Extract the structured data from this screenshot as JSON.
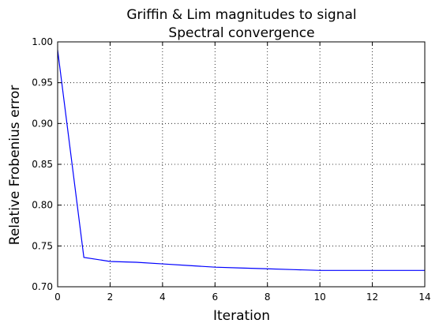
{
  "chart_data": {
    "type": "line",
    "title_line1": "Griffin & Lim magnitudes to signal",
    "title_line2": "Spectral convergence",
    "xlabel": "Iteration",
    "ylabel": "Relative Frobenius error",
    "xlim": [
      0,
      14
    ],
    "ylim": [
      0.7,
      1.0
    ],
    "xticks": [
      0,
      2,
      4,
      6,
      8,
      10,
      12,
      14
    ],
    "xtick_labels": [
      "0",
      "2",
      "4",
      "6",
      "8",
      "10",
      "12",
      "14"
    ],
    "yticks": [
      0.7,
      0.75,
      0.8,
      0.85,
      0.9,
      0.95,
      1.0
    ],
    "ytick_labels": [
      "0.70",
      "0.75",
      "0.80",
      "0.85",
      "0.90",
      "0.95",
      "1.00"
    ],
    "grid": true,
    "legend": false,
    "series": [
      {
        "color": "#0000ff",
        "x": [
          0,
          1,
          2,
          3,
          4,
          5,
          6,
          7,
          8,
          9,
          10,
          11,
          12,
          13,
          14
        ],
        "y": [
          0.99,
          0.736,
          0.731,
          0.73,
          0.728,
          0.726,
          0.724,
          0.723,
          0.722,
          0.721,
          0.72,
          0.72,
          0.72,
          0.72,
          0.72
        ]
      }
    ]
  }
}
